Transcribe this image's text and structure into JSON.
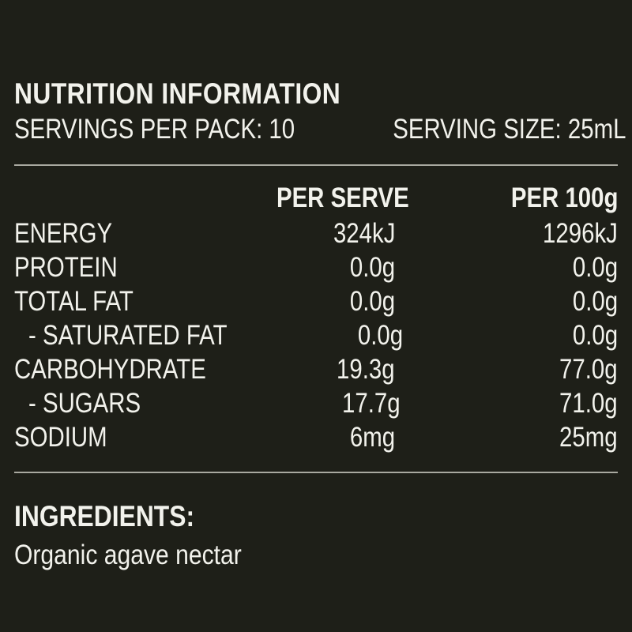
{
  "panel": {
    "title": "NUTRITION INFORMATION",
    "servings_per_pack": "SERVINGS PER PACK: 10",
    "serving_size": "SERVING SIZE: 25mL"
  },
  "table": {
    "headers": {
      "per_serve": "PER SERVE",
      "per_100g": "PER 100g"
    },
    "rows": [
      {
        "name": "ENERGY",
        "per_serve": "324kJ",
        "per_100g": "1296kJ"
      },
      {
        "name": "PROTEIN",
        "per_serve": "0.0g",
        "per_100g": "0.0g"
      },
      {
        "name": "TOTAL FAT",
        "per_serve": "0.0g",
        "per_100g": "0.0g"
      },
      {
        "name": "- SATURATED FAT",
        "per_serve": "0.0g",
        "per_100g": "0.0g"
      },
      {
        "name": "CARBOHYDRATE",
        "per_serve": "19.3g",
        "per_100g": "77.0g"
      },
      {
        "name": "- SUGARS",
        "per_serve": "17.7g",
        "per_100g": "71.0g"
      },
      {
        "name": "SODIUM",
        "per_serve": "6mg",
        "per_100g": "25mg"
      }
    ]
  },
  "ingredients": {
    "title": "INGREDIENTS:",
    "text": "Organic agave nectar"
  },
  "colors": {
    "background": "#1e1f18",
    "text": "#f2f2ec",
    "rule": "#a9a9a0"
  }
}
